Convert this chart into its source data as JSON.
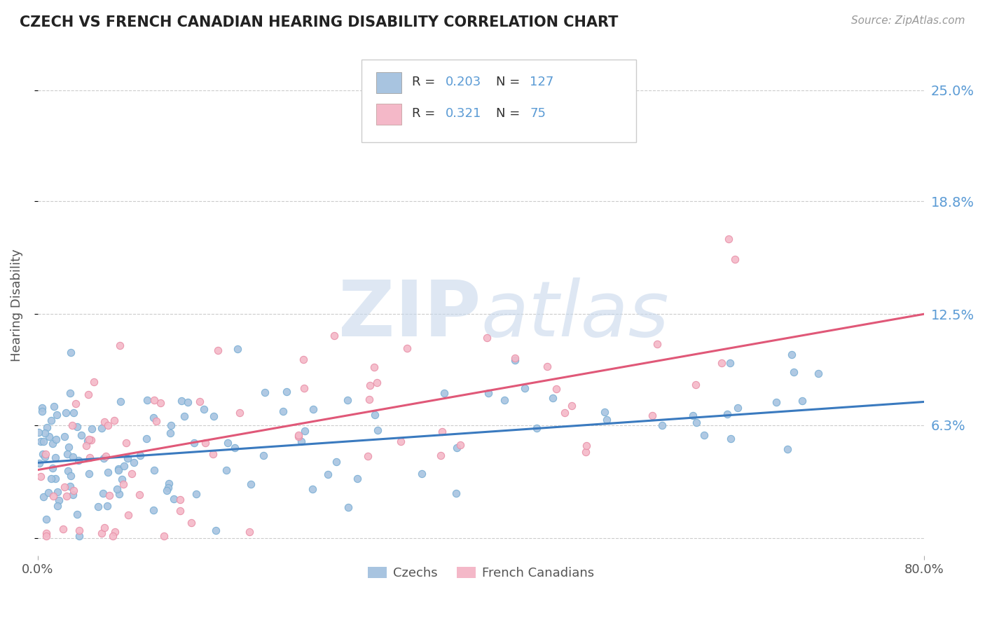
{
  "title": "CZECH VS FRENCH CANADIAN HEARING DISABILITY CORRELATION CHART",
  "source": "Source: ZipAtlas.com",
  "ylabel": "Hearing Disability",
  "right_yticks": [
    0.0,
    0.063,
    0.125,
    0.188,
    0.25
  ],
  "right_yticklabels": [
    "",
    "6.3%",
    "12.5%",
    "18.8%",
    "25.0%"
  ],
  "xlim": [
    0.0,
    0.8
  ],
  "ylim": [
    -0.01,
    0.27
  ],
  "blue_R": 0.203,
  "blue_N": 127,
  "pink_R": 0.321,
  "pink_N": 75,
  "blue_color": "#a8c4e0",
  "pink_color": "#f4b8c8",
  "blue_edge_color": "#7aafd4",
  "pink_edge_color": "#e890a8",
  "blue_line_color": "#3a7abf",
  "pink_line_color": "#e05878",
  "title_color": "#222222",
  "right_tick_color": "#5b9bd5",
  "watermark_color": "#c8d8ec",
  "background_color": "#ffffff",
  "grid_color": "#cccccc",
  "blue_line_start_x": 0.0,
  "blue_line_end_x": 0.8,
  "blue_line_start_y": 0.042,
  "blue_line_end_y": 0.076,
  "pink_line_start_x": 0.0,
  "pink_line_end_x": 0.8,
  "pink_line_start_y": 0.038,
  "pink_line_end_y": 0.125,
  "legend_labels": [
    "Czechs",
    "French Canadians"
  ]
}
